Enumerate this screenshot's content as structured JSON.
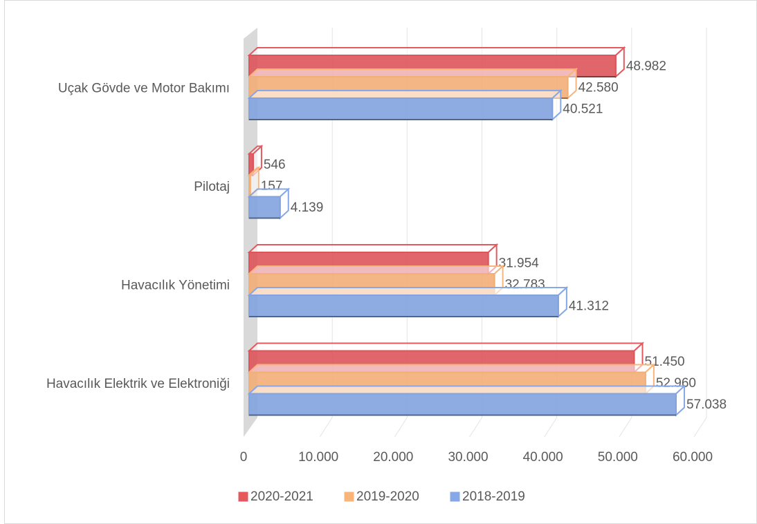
{
  "chart_data": {
    "type": "bar",
    "orientation": "horizontal",
    "categories": [
      "Uçak Gövde ve Motor Bakımı",
      "Pilotaj",
      "Havacılık Yönetimi",
      "Havacılık Elektrik ve Elektroniği"
    ],
    "series": [
      {
        "name": "2020-2021",
        "color": "#e4585e",
        "values": [
          48982,
          546,
          31954,
          51450
        ],
        "value_labels": [
          "48.982",
          "546",
          "31.954",
          "51.450"
        ]
      },
      {
        "name": "2019-2020",
        "color": "#f9b47a",
        "values": [
          42580,
          157,
          32783,
          52960
        ],
        "value_labels": [
          "42.580",
          "157",
          "32.783",
          "52.960"
        ]
      },
      {
        "name": "2018-2019",
        "color": "#86a8e6",
        "values": [
          40521,
          4139,
          41312,
          57038
        ],
        "value_labels": [
          "40.521",
          "4.139",
          "41.312",
          "57.038"
        ]
      }
    ],
    "xlim": [
      0,
      60000
    ],
    "xticks": [
      0,
      {
        "value": 10000,
        "label": "10.000"
      },
      {
        "value": 20000,
        "label": "20.000"
      },
      {
        "value": 30000,
        "label": "30.000"
      },
      {
        "value": 40000,
        "label": "40.000"
      },
      {
        "value": 50000,
        "label": "50.000"
      },
      {
        "value": 60000,
        "label": "60.000"
      }
    ],
    "grid": true,
    "legend": "bottom"
  }
}
